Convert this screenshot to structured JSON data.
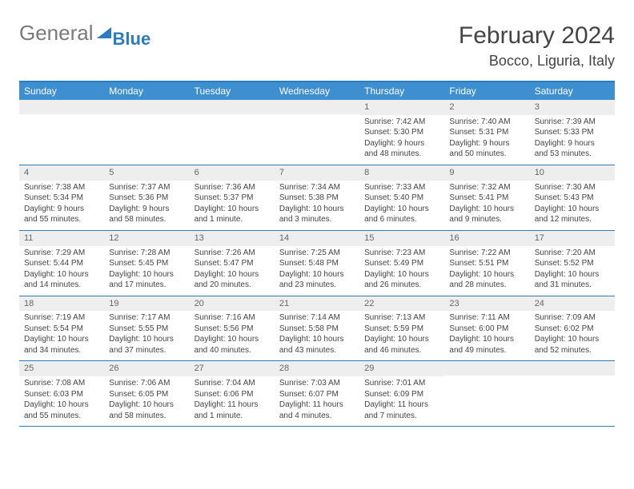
{
  "brand": {
    "word1": "General",
    "word2": "Blue"
  },
  "header": {
    "title": "February 2024",
    "location": "Bocco, Liguria, Italy"
  },
  "colors": {
    "accent": "#3e8fcf",
    "rule": "#2b7bbf",
    "daybar": "#eeeeee",
    "text": "#444444"
  },
  "weekdays": [
    "Sunday",
    "Monday",
    "Tuesday",
    "Wednesday",
    "Thursday",
    "Friday",
    "Saturday"
  ],
  "weeks": [
    [
      null,
      null,
      null,
      null,
      {
        "n": "1",
        "sunrise": "Sunrise: 7:42 AM",
        "sunset": "Sunset: 5:30 PM",
        "day1": "Daylight: 9 hours",
        "day2": "and 48 minutes."
      },
      {
        "n": "2",
        "sunrise": "Sunrise: 7:40 AM",
        "sunset": "Sunset: 5:31 PM",
        "day1": "Daylight: 9 hours",
        "day2": "and 50 minutes."
      },
      {
        "n": "3",
        "sunrise": "Sunrise: 7:39 AM",
        "sunset": "Sunset: 5:33 PM",
        "day1": "Daylight: 9 hours",
        "day2": "and 53 minutes."
      }
    ],
    [
      {
        "n": "4",
        "sunrise": "Sunrise: 7:38 AM",
        "sunset": "Sunset: 5:34 PM",
        "day1": "Daylight: 9 hours",
        "day2": "and 55 minutes."
      },
      {
        "n": "5",
        "sunrise": "Sunrise: 7:37 AM",
        "sunset": "Sunset: 5:36 PM",
        "day1": "Daylight: 9 hours",
        "day2": "and 58 minutes."
      },
      {
        "n": "6",
        "sunrise": "Sunrise: 7:36 AM",
        "sunset": "Sunset: 5:37 PM",
        "day1": "Daylight: 10 hours",
        "day2": "and 1 minute."
      },
      {
        "n": "7",
        "sunrise": "Sunrise: 7:34 AM",
        "sunset": "Sunset: 5:38 PM",
        "day1": "Daylight: 10 hours",
        "day2": "and 3 minutes."
      },
      {
        "n": "8",
        "sunrise": "Sunrise: 7:33 AM",
        "sunset": "Sunset: 5:40 PM",
        "day1": "Daylight: 10 hours",
        "day2": "and 6 minutes."
      },
      {
        "n": "9",
        "sunrise": "Sunrise: 7:32 AM",
        "sunset": "Sunset: 5:41 PM",
        "day1": "Daylight: 10 hours",
        "day2": "and 9 minutes."
      },
      {
        "n": "10",
        "sunrise": "Sunrise: 7:30 AM",
        "sunset": "Sunset: 5:43 PM",
        "day1": "Daylight: 10 hours",
        "day2": "and 12 minutes."
      }
    ],
    [
      {
        "n": "11",
        "sunrise": "Sunrise: 7:29 AM",
        "sunset": "Sunset: 5:44 PM",
        "day1": "Daylight: 10 hours",
        "day2": "and 14 minutes."
      },
      {
        "n": "12",
        "sunrise": "Sunrise: 7:28 AM",
        "sunset": "Sunset: 5:45 PM",
        "day1": "Daylight: 10 hours",
        "day2": "and 17 minutes."
      },
      {
        "n": "13",
        "sunrise": "Sunrise: 7:26 AM",
        "sunset": "Sunset: 5:47 PM",
        "day1": "Daylight: 10 hours",
        "day2": "and 20 minutes."
      },
      {
        "n": "14",
        "sunrise": "Sunrise: 7:25 AM",
        "sunset": "Sunset: 5:48 PM",
        "day1": "Daylight: 10 hours",
        "day2": "and 23 minutes."
      },
      {
        "n": "15",
        "sunrise": "Sunrise: 7:23 AM",
        "sunset": "Sunset: 5:49 PM",
        "day1": "Daylight: 10 hours",
        "day2": "and 26 minutes."
      },
      {
        "n": "16",
        "sunrise": "Sunrise: 7:22 AM",
        "sunset": "Sunset: 5:51 PM",
        "day1": "Daylight: 10 hours",
        "day2": "and 28 minutes."
      },
      {
        "n": "17",
        "sunrise": "Sunrise: 7:20 AM",
        "sunset": "Sunset: 5:52 PM",
        "day1": "Daylight: 10 hours",
        "day2": "and 31 minutes."
      }
    ],
    [
      {
        "n": "18",
        "sunrise": "Sunrise: 7:19 AM",
        "sunset": "Sunset: 5:54 PM",
        "day1": "Daylight: 10 hours",
        "day2": "and 34 minutes."
      },
      {
        "n": "19",
        "sunrise": "Sunrise: 7:17 AM",
        "sunset": "Sunset: 5:55 PM",
        "day1": "Daylight: 10 hours",
        "day2": "and 37 minutes."
      },
      {
        "n": "20",
        "sunrise": "Sunrise: 7:16 AM",
        "sunset": "Sunset: 5:56 PM",
        "day1": "Daylight: 10 hours",
        "day2": "and 40 minutes."
      },
      {
        "n": "21",
        "sunrise": "Sunrise: 7:14 AM",
        "sunset": "Sunset: 5:58 PM",
        "day1": "Daylight: 10 hours",
        "day2": "and 43 minutes."
      },
      {
        "n": "22",
        "sunrise": "Sunrise: 7:13 AM",
        "sunset": "Sunset: 5:59 PM",
        "day1": "Daylight: 10 hours",
        "day2": "and 46 minutes."
      },
      {
        "n": "23",
        "sunrise": "Sunrise: 7:11 AM",
        "sunset": "Sunset: 6:00 PM",
        "day1": "Daylight: 10 hours",
        "day2": "and 49 minutes."
      },
      {
        "n": "24",
        "sunrise": "Sunrise: 7:09 AM",
        "sunset": "Sunset: 6:02 PM",
        "day1": "Daylight: 10 hours",
        "day2": "and 52 minutes."
      }
    ],
    [
      {
        "n": "25",
        "sunrise": "Sunrise: 7:08 AM",
        "sunset": "Sunset: 6:03 PM",
        "day1": "Daylight: 10 hours",
        "day2": "and 55 minutes."
      },
      {
        "n": "26",
        "sunrise": "Sunrise: 7:06 AM",
        "sunset": "Sunset: 6:05 PM",
        "day1": "Daylight: 10 hours",
        "day2": "and 58 minutes."
      },
      {
        "n": "27",
        "sunrise": "Sunrise: 7:04 AM",
        "sunset": "Sunset: 6:06 PM",
        "day1": "Daylight: 11 hours",
        "day2": "and 1 minute."
      },
      {
        "n": "28",
        "sunrise": "Sunrise: 7:03 AM",
        "sunset": "Sunset: 6:07 PM",
        "day1": "Daylight: 11 hours",
        "day2": "and 4 minutes."
      },
      {
        "n": "29",
        "sunrise": "Sunrise: 7:01 AM",
        "sunset": "Sunset: 6:09 PM",
        "day1": "Daylight: 11 hours",
        "day2": "and 7 minutes."
      },
      null,
      null
    ]
  ]
}
